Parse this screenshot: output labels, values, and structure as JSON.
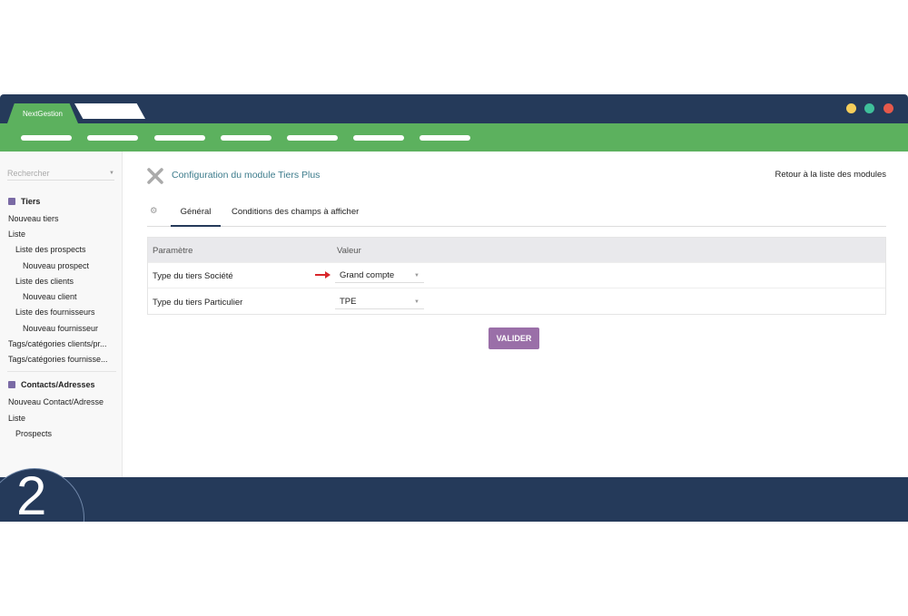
{
  "app": {
    "brand": "NextGestion",
    "dots": [
      "#f6ce5b",
      "#3fbf9a",
      "#e6594b"
    ]
  },
  "sidebar": {
    "search_placeholder": "Rechercher",
    "items": [
      {
        "label": "Tiers",
        "type": "header"
      },
      {
        "label": "Nouveau tiers",
        "level": 0
      },
      {
        "label": "Liste",
        "level": 0
      },
      {
        "label": "Liste des prospects",
        "level": 1
      },
      {
        "label": "Nouveau prospect",
        "level": 2
      },
      {
        "label": "Liste des clients",
        "level": 1
      },
      {
        "label": "Nouveau client",
        "level": 2
      },
      {
        "label": "Liste des fournisseurs",
        "level": 1
      },
      {
        "label": "Nouveau fournisseur",
        "level": 2
      },
      {
        "label": "Tags/catégories clients/pr...",
        "level": 0
      },
      {
        "label": "Tags/catégories fournisse...",
        "level": 0
      },
      {
        "label": "Contacts/Adresses",
        "type": "header"
      },
      {
        "label": "Nouveau Contact/Adresse",
        "level": 0
      },
      {
        "label": "Liste",
        "level": 0
      },
      {
        "label": "Prospects",
        "level": 1
      }
    ]
  },
  "main": {
    "title": "Configuration du module Tiers Plus",
    "back_link": "Retour à la liste des modules",
    "tabs": [
      {
        "label": "Général",
        "active": true
      },
      {
        "label": "Conditions des champs à afficher"
      }
    ],
    "table": {
      "headers": [
        "Paramètre",
        "Valeur"
      ],
      "rows": [
        {
          "param": "Type du tiers Société",
          "value": "Grand compte",
          "highlighted": true
        },
        {
          "param": "Type du tiers Particulier",
          "value": "TPE"
        }
      ]
    },
    "submit": "VALIDER"
  },
  "step_number": "2"
}
